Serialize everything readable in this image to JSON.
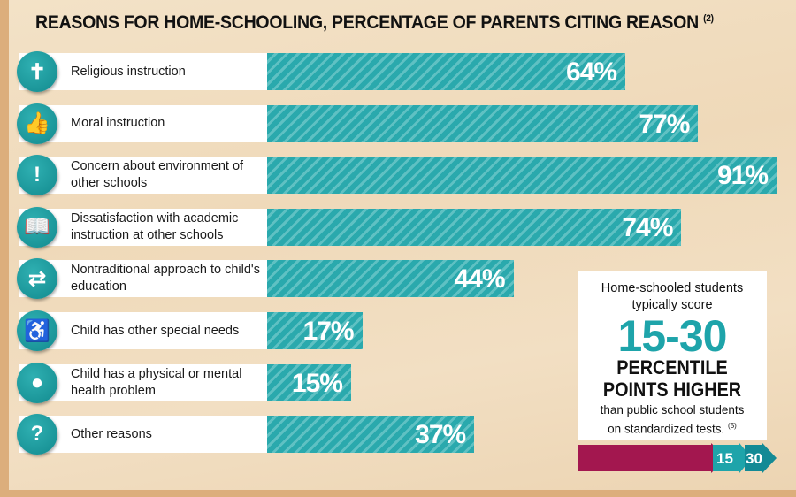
{
  "chart_data": {
    "type": "bar",
    "orientation": "horizontal",
    "title": "REASONS FOR HOME-SCHOOLING, PERCENTAGE OF PARENTS CITING REASON",
    "title_note": "(2)",
    "categories": [
      "Religious instruction",
      "Moral instruction",
      "Concern about environment of other schools",
      "Dissatisfaction with academic instruction at other schools",
      "Nontraditional approach to child's education",
      "Child has other special needs",
      "Child has a physical or mental health problem",
      "Other reasons"
    ],
    "values": [
      64,
      77,
      91,
      74,
      44,
      17,
      15,
      37
    ],
    "value_labels": [
      "64%",
      "77%",
      "91%",
      "74%",
      "44%",
      "17%",
      "15%",
      "37%"
    ],
    "icons": [
      "religion-book-icon",
      "thumbs-up-down-icon",
      "school-alert-icon",
      "book-thumbs-down-icon",
      "lightbulb-arrows-icon",
      "wheelchair-icon",
      "head-brain-icon",
      "question-mark-icon"
    ],
    "xlim": [
      0,
      100
    ],
    "grid": false,
    "bar_color": "#2aa9ad"
  },
  "callout": {
    "line1": "Home-schooled students",
    "line2": "typically score",
    "big": "15-30",
    "bold1": "PERCENTILE",
    "bold2": "POINTS HIGHER",
    "line3": "than public school students",
    "line4": "on standardized tests.",
    "note": "(5)",
    "arrow_labels": [
      "15",
      "30"
    ],
    "colors": {
      "number": "#1ea4aa",
      "arrow": "#a3174f"
    }
  }
}
